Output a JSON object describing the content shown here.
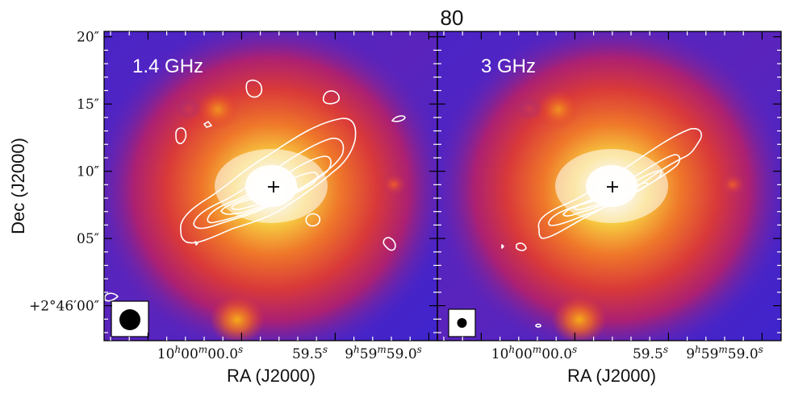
{
  "chart_data": {
    "type": "image",
    "title": "80",
    "xlabel": "RA (J2000)",
    "ylabel": "Dec (J2000)",
    "x_ticks": [
      {
        "ra": "10h00m00.0s",
        "label_main": "10",
        "parts": [
          [
            "10",
            "h"
          ],
          [
            "00",
            "m"
          ],
          [
            "00.0",
            "s"
          ]
        ]
      },
      {
        "ra": "59.5s",
        "parts": [
          [
            "59.5",
            "s"
          ]
        ]
      },
      {
        "ra": "9h59m59.0s",
        "parts": [
          [
            "9",
            "h"
          ],
          [
            "59",
            "m"
          ],
          [
            "59.0",
            "s"
          ]
        ]
      }
    ],
    "y_ticks": [
      {
        "arcsec": 20,
        "label": "20″"
      },
      {
        "arcsec": 15,
        "label": "15″"
      },
      {
        "arcsec": 10,
        "label": "10″"
      },
      {
        "arcsec": 5,
        "label": "05″"
      },
      {
        "arcsec": 0,
        "label": "+2°46′00″"
      }
    ],
    "y_range_arcsec": [
      -2.6,
      20.4
    ],
    "panels": [
      {
        "label": "1.4 GHz",
        "beam": "large",
        "contour_levels": 5,
        "source_marker": "+"
      },
      {
        "label": "3 GHz",
        "beam": "small",
        "contour_levels": 4,
        "source_marker": "+"
      }
    ],
    "colors": {
      "background_low": "#4a22c8",
      "mid": "#e8402a",
      "high": "#f7b51c",
      "peak": "#ffffff",
      "contour": "#ffffff"
    }
  }
}
